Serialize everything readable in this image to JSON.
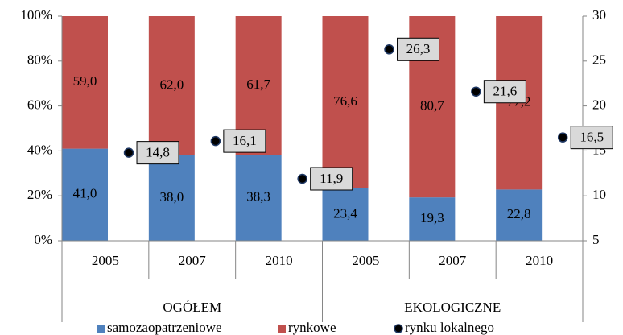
{
  "chart_data": {
    "type": "stacked_bar_scatter",
    "groups": [
      {
        "name": "OGÓŁEM",
        "categories": [
          "2005",
          "2007",
          "2010"
        ]
      },
      {
        "name": "EKOLOGICZNE",
        "categories": [
          "2005",
          "2007",
          "2010"
        ]
      }
    ],
    "series": [
      {
        "name": "samozaopatrzeniowe",
        "color": "#4f81bd",
        "values": [
          41.0,
          38.0,
          38.3,
          23.4,
          19.3,
          22.8
        ],
        "value_labels": [
          "41,0",
          "38,0",
          "38,3",
          "23,4",
          "19,3",
          "22,8"
        ]
      },
      {
        "name": "rynkowe",
        "color": "#c0504d",
        "values": [
          59.0,
          62.0,
          61.7,
          76.6,
          80.7,
          77.2
        ],
        "value_labels": [
          "59,0",
          "62,0",
          "61,7",
          "76,6",
          "80,7",
          "77,2"
        ]
      },
      {
        "name": "rynku lokalnego",
        "color": "#000000",
        "axis": "y2",
        "values": [
          14.8,
          16.1,
          11.9,
          26.3,
          21.6,
          16.5
        ],
        "value_labels": [
          "14,8",
          "16,1",
          "11,9",
          "26,3",
          "21,6",
          "16,5"
        ]
      }
    ],
    "ylim": [
      0,
      100
    ],
    "yticks": [
      {
        "value": 0,
        "label": "0%"
      },
      {
        "value": 20,
        "label": "20%"
      },
      {
        "value": 40,
        "label": "40%"
      },
      {
        "value": 60,
        "label": "60%"
      },
      {
        "value": 80,
        "label": "80%"
      },
      {
        "value": 100,
        "label": "100%"
      }
    ],
    "y2lim": [
      5,
      30
    ],
    "y2ticks": [
      5,
      10,
      15,
      20,
      25,
      30
    ],
    "legend": "bottom"
  }
}
